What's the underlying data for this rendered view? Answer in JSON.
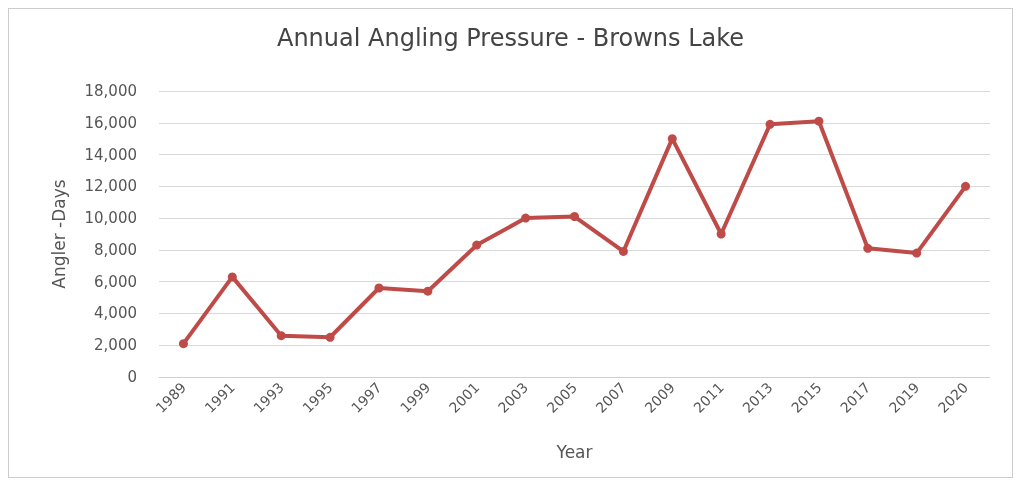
{
  "chart_data": {
    "type": "line",
    "title": "Annual Angling Pressure - Browns Lake",
    "xlabel": "Year",
    "ylabel": "Angler -Days",
    "categories": [
      "1989",
      "1991",
      "1993",
      "1995",
      "1997",
      "1999",
      "2001",
      "2003",
      "2005",
      "2007",
      "2009",
      "2011",
      "2013",
      "2015",
      "2017",
      "2019",
      "2020"
    ],
    "series": [
      {
        "color": "#be4b48",
        "values": [
          2100,
          6300,
          2600,
          2500,
          5600,
          5400,
          8300,
          10000,
          10100,
          7900,
          15000,
          9000,
          15900,
          16100,
          8100,
          7800,
          12000
        ]
      }
    ],
    "ylim": [
      0,
      18000
    ],
    "yticks": [
      0,
      {
        "value": 2000,
        "label": "2,000"
      },
      {
        "value": 4000,
        "label": "4,000"
      },
      {
        "value": 6000,
        "label": "6,000"
      },
      {
        "value": 8000,
        "label": "8,000"
      },
      {
        "value": 10000,
        "label": "10,000"
      },
      {
        "value": 12000,
        "label": "12,000"
      },
      {
        "value": 14000,
        "label": "14,000"
      },
      {
        "value": 16000,
        "label": "16,000"
      },
      {
        "value": 18000,
        "label": "18,000"
      }
    ],
    "grid": "y",
    "marker": "circle",
    "line_style": "solid"
  }
}
